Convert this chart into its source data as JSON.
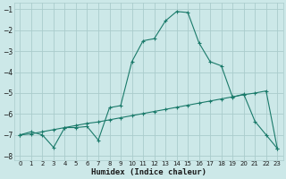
{
  "xlabel": "Humidex (Indice chaleur)",
  "background_color": "#cce8e8",
  "grid_color": "#aacccc",
  "line_color": "#1a7a6a",
  "xlim": [
    -0.5,
    23.5
  ],
  "ylim": [
    -8.2,
    -0.7
  ],
  "yticks": [
    -8,
    -7,
    -6,
    -5,
    -4,
    -3,
    -2,
    -1
  ],
  "xticks": [
    0,
    1,
    2,
    3,
    4,
    5,
    6,
    7,
    8,
    9,
    10,
    11,
    12,
    13,
    14,
    15,
    16,
    17,
    18,
    19,
    20,
    21,
    22,
    23
  ],
  "line1_x": [
    0,
    1,
    2,
    3,
    4,
    5,
    6,
    7,
    8,
    9,
    10,
    11,
    12,
    13,
    14,
    15,
    16,
    17,
    18,
    19,
    20,
    21,
    22,
    23
  ],
  "line1_y": [
    -7.0,
    -6.85,
    -7.0,
    -7.6,
    -6.65,
    -6.65,
    -6.6,
    -7.25,
    -5.7,
    -5.6,
    -3.5,
    -2.5,
    -2.4,
    -1.55,
    -1.1,
    -1.15,
    -2.6,
    -3.5,
    -3.7,
    -5.2,
    -5.05,
    -6.35,
    -7.0,
    -7.65
  ],
  "line2_x": [
    0,
    1,
    2,
    3,
    4,
    5,
    6,
    7,
    8,
    9,
    10,
    11,
    12,
    13,
    14,
    15,
    16,
    17,
    18,
    19,
    20,
    21,
    22,
    23
  ],
  "line2_y": [
    -7.0,
    -6.95,
    -6.85,
    -6.75,
    -6.65,
    -6.55,
    -6.45,
    -6.38,
    -6.28,
    -6.18,
    -6.08,
    -5.98,
    -5.88,
    -5.78,
    -5.68,
    -5.58,
    -5.48,
    -5.38,
    -5.28,
    -5.18,
    -5.08,
    -5.0,
    -4.9,
    -7.65
  ]
}
